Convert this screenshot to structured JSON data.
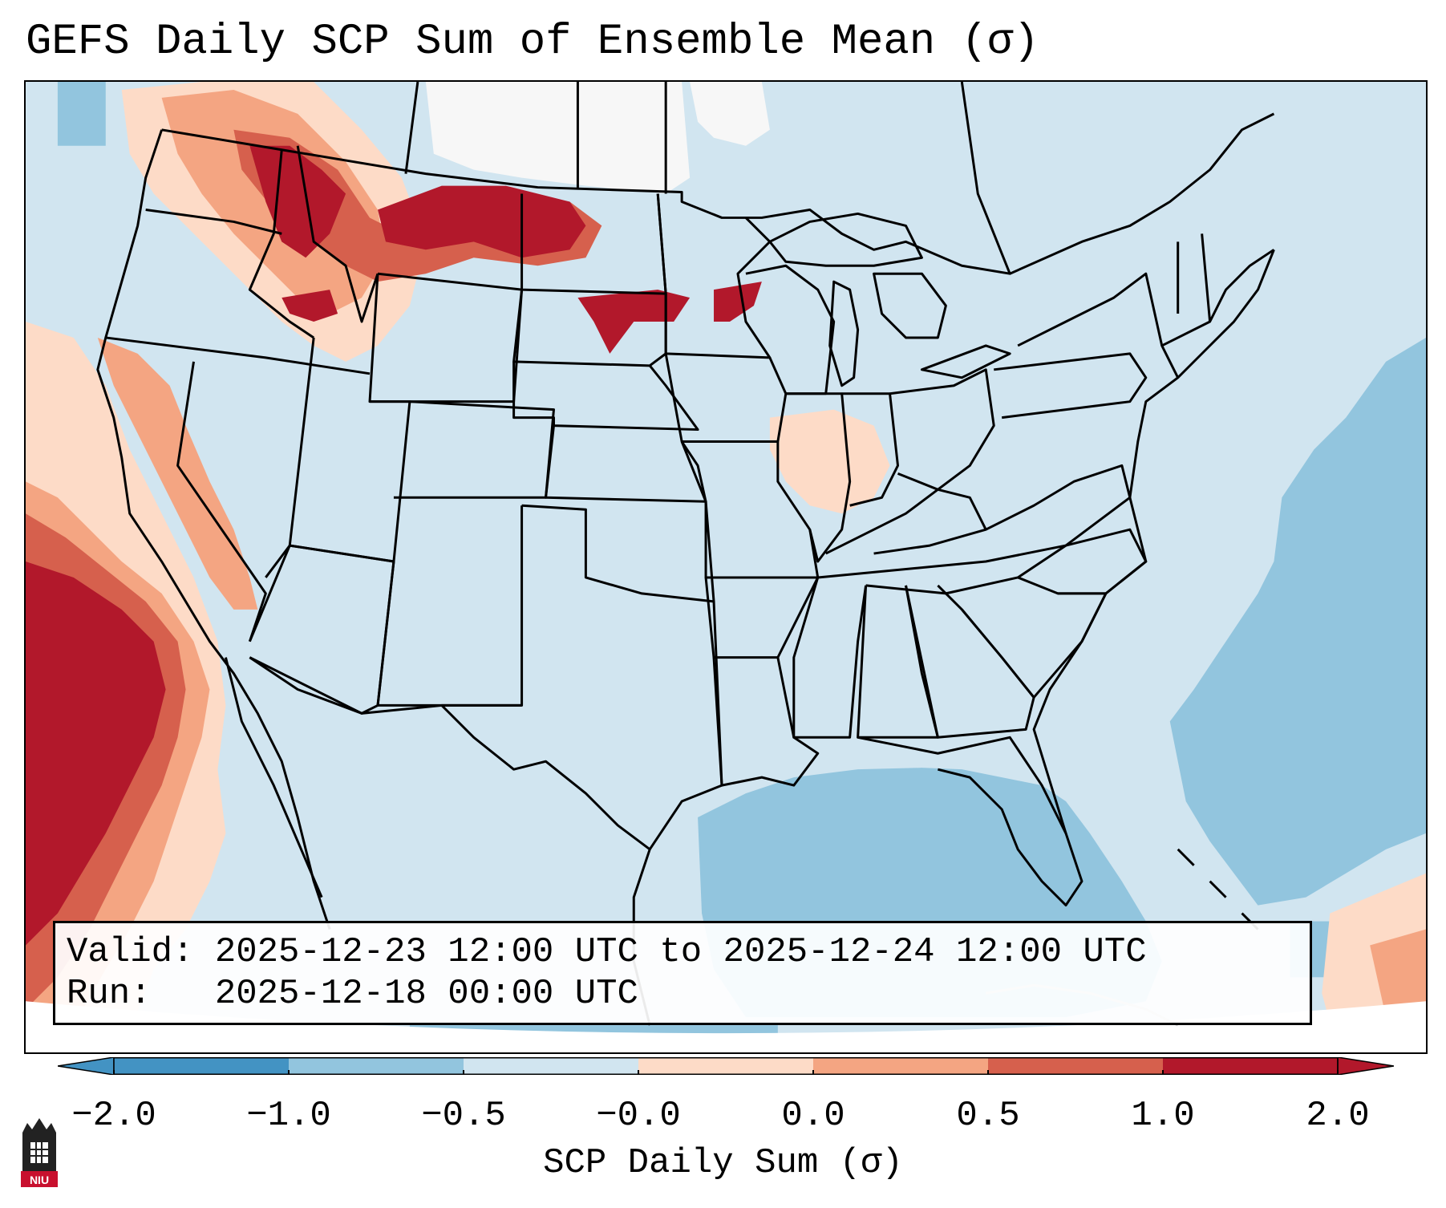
{
  "title": "GEFS Daily SCP Sum of Ensemble Mean (σ)",
  "info": {
    "valid_label": "Valid:",
    "valid_value": "2025-12-23 12:00 UTC to 2025-12-24 12:00 UTC",
    "run_label": "Run:  ",
    "run_value": "2025-12-18 00:00 UTC"
  },
  "colorbar": {
    "label": "SCP Daily Sum (σ)",
    "ticks": [
      "−2.0",
      "−1.0",
      "−0.5",
      "−0.0",
      "0.0",
      "0.5",
      "1.0",
      "2.0"
    ],
    "colors": [
      "#4393c3",
      "#92c5de",
      "#d1e5f0",
      "#f7f7f7",
      "#fddbc7",
      "#f4a582",
      "#d6604d",
      "#b2182b"
    ],
    "extend": "both"
  },
  "map": {
    "projection": "Lambert conformal, CONUS",
    "ocean_color": "#92c5de",
    "land_color": "#d1e5f0",
    "border_color": "#000000",
    "regions": [
      {
        "area": "Pacific Northwest",
        "sigma": 1.0
      },
      {
        "area": "Northern Rockies / Montana",
        "sigma": 2.0
      },
      {
        "area": "North Dakota",
        "sigma": 2.0
      },
      {
        "area": "Minnesota / Wisconsin",
        "sigma": 2.0
      },
      {
        "area": "California coast",
        "sigma": 1.0
      },
      {
        "area": "Eastern Pacific offshore",
        "sigma": 2.0
      },
      {
        "area": "Gulf of Mexico",
        "sigma": -1.0
      },
      {
        "area": "Western Atlantic",
        "sigma": -1.0
      },
      {
        "area": "Ohio Valley",
        "sigma": 0.3
      }
    ]
  },
  "logo": {
    "text": "NIU",
    "color": "#c8102e"
  }
}
